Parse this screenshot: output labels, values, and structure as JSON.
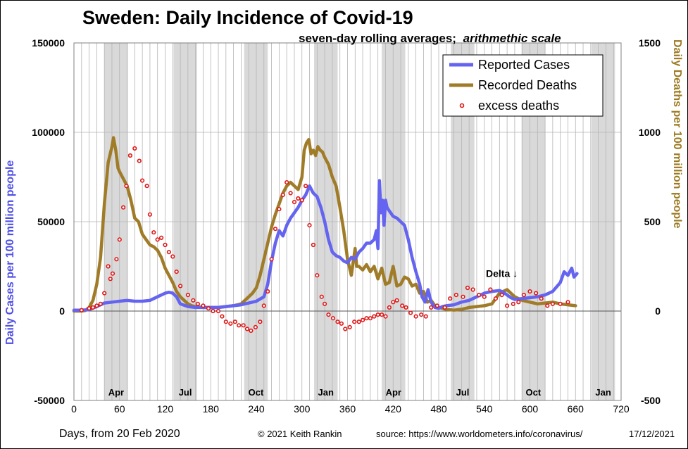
{
  "chart_data": {
    "type": "line",
    "title": "Sweden: Daily Incidence of Covid-19",
    "subtitle": "seven-day rolling averages;",
    "subtitle_italic": "arithmethic scale",
    "xlabel": "Days, from 20 Feb 2020",
    "ylabel_left": "Daily Cases per 100 million people",
    "ylabel_right": "Daily Deaths per 100 million people",
    "xlim": [
      0,
      720
    ],
    "xticks": [
      0,
      60,
      120,
      180,
      240,
      300,
      360,
      420,
      480,
      540,
      600,
      660,
      720
    ],
    "ylim_left": [
      -50000,
      150000
    ],
    "yticks_left": [
      -50000,
      0,
      50000,
      100000,
      150000
    ],
    "ylim_right": [
      -500,
      1500
    ],
    "yticks_right": [
      -500,
      0,
      500,
      1000,
      1500
    ],
    "vertical_grid_step": 10,
    "shaded_bands": [
      {
        "label": "Apr",
        "x": [
          40,
          71
        ]
      },
      {
        "label": "Jul",
        "x": [
          131,
          162
        ]
      },
      {
        "label": "Oct",
        "x": [
          224,
          255
        ]
      },
      {
        "label": "Jan",
        "x": [
          316,
          347
        ]
      },
      {
        "label": "Apr",
        "x": [
          405,
          436
        ]
      },
      {
        "label": "Jul",
        "x": [
          496,
          527
        ]
      },
      {
        "label": "Oct",
        "x": [
          589,
          620
        ]
      },
      {
        "label": "Jan",
        "x": [
          681,
          712
        ]
      }
    ],
    "legend": {
      "placement": "top-right",
      "entries": [
        {
          "label": "Reported Cases",
          "color": "#6464f0",
          "kind": "line"
        },
        {
          "label": "Recorded Deaths",
          "color": "#a07c28",
          "kind": "line"
        },
        {
          "label": "excess deaths",
          "color": "#e01818",
          "kind": "marker"
        }
      ]
    },
    "annotations": [
      {
        "text": "Delta ↓",
        "x": 563,
        "y_left": 19000
      }
    ],
    "series": [
      {
        "name": "Reported Cases",
        "axis": "left",
        "color": "#6464f0",
        "x": [
          0,
          10,
          20,
          30,
          40,
          50,
          60,
          70,
          80,
          90,
          100,
          110,
          120,
          125,
          130,
          135,
          140,
          150,
          160,
          170,
          180,
          190,
          200,
          210,
          220,
          230,
          240,
          250,
          255,
          260,
          265,
          270,
          275,
          280,
          285,
          290,
          295,
          300,
          305,
          310,
          315,
          320,
          325,
          330,
          335,
          340,
          345,
          350,
          355,
          360,
          365,
          370,
          375,
          380,
          385,
          390,
          395,
          398,
          400,
          402,
          404,
          406,
          408,
          410,
          412,
          415,
          420,
          425,
          430,
          435,
          440,
          445,
          450,
          455,
          458,
          462,
          466,
          470,
          475,
          480,
          485,
          490,
          500,
          510,
          520,
          530,
          540,
          550,
          560,
          565,
          570,
          575,
          580,
          590,
          600,
          610,
          620,
          630,
          640,
          645,
          650,
          655,
          658,
          662
        ],
        "values": [
          500,
          500,
          800,
          2500,
          4500,
          5000,
          5500,
          6000,
          5500,
          5500,
          6000,
          8000,
          10000,
          10500,
          10000,
          8000,
          4000,
          2500,
          2000,
          2000,
          2000,
          2000,
          2500,
          3000,
          3500,
          4500,
          5500,
          8000,
          15000,
          28000,
          38000,
          45000,
          42000,
          48000,
          52000,
          55000,
          58000,
          62000,
          65000,
          70000,
          66000,
          64000,
          58000,
          50000,
          40000,
          33000,
          31000,
          30000,
          28000,
          27000,
          30000,
          29000,
          33000,
          35000,
          38000,
          38000,
          40000,
          45000,
          35000,
          73000,
          55000,
          62000,
          48000,
          62000,
          58000,
          56000,
          53000,
          52000,
          50000,
          48000,
          40000,
          30000,
          22000,
          15000,
          8000,
          5000,
          12000,
          5000,
          2000,
          1500,
          2500,
          3000,
          3500,
          5000,
          6000,
          8000,
          10000,
          11000,
          11500,
          10500,
          9000,
          7500,
          6500,
          7000,
          7500,
          8000,
          9000,
          11000,
          16000,
          22000,
          20000,
          24000,
          19000,
          21000
        ]
      },
      {
        "name": "Recorded Deaths",
        "axis": "right",
        "color": "#a07c28",
        "x": [
          0,
          10,
          15,
          20,
          25,
          30,
          35,
          40,
          45,
          50,
          52,
          55,
          58,
          60,
          65,
          70,
          75,
          80,
          85,
          90,
          95,
          100,
          105,
          110,
          115,
          120,
          125,
          130,
          135,
          140,
          145,
          150,
          155,
          160,
          170,
          180,
          190,
          200,
          210,
          220,
          225,
          230,
          235,
          240,
          245,
          250,
          255,
          260,
          265,
          270,
          275,
          280,
          285,
          290,
          295,
          300,
          303,
          306,
          309,
          312,
          315,
          318,
          321,
          324,
          327,
          330,
          335,
          340,
          345,
          350,
          355,
          360,
          365,
          370,
          372,
          375,
          380,
          385,
          390,
          395,
          400,
          405,
          410,
          415,
          420,
          425,
          430,
          435,
          440,
          445,
          450,
          455,
          460,
          465,
          470,
          475,
          480,
          485,
          490,
          500,
          510,
          520,
          530,
          540,
          550,
          560,
          565,
          570,
          575,
          580,
          590,
          600,
          610,
          620,
          630,
          640,
          650,
          660
        ],
        "values": [
          0,
          0,
          3,
          20,
          60,
          150,
          300,
          600,
          830,
          920,
          970,
          900,
          800,
          780,
          740,
          700,
          620,
          520,
          500,
          430,
          400,
          370,
          360,
          340,
          300,
          240,
          200,
          160,
          110,
          80,
          60,
          40,
          30,
          25,
          20,
          20,
          20,
          25,
          30,
          40,
          60,
          80,
          100,
          130,
          200,
          290,
          380,
          470,
          540,
          600,
          660,
          700,
          720,
          700,
          680,
          750,
          900,
          940,
          960,
          880,
          900,
          870,
          920,
          900,
          890,
          860,
          820,
          750,
          700,
          580,
          450,
          290,
          200,
          350,
          250,
          250,
          230,
          260,
          220,
          250,
          180,
          240,
          150,
          160,
          250,
          140,
          150,
          190,
          180,
          140,
          150,
          100,
          110,
          50,
          60,
          30,
          20,
          15,
          10,
          5,
          10,
          20,
          25,
          30,
          40,
          100,
          110,
          120,
          100,
          80,
          60,
          50,
          40,
          45,
          50,
          40,
          35,
          30
        ]
      }
    ],
    "points": {
      "name": "excess deaths",
      "axis": "right",
      "color": "#e01818",
      "x": [
        10,
        20,
        25,
        30,
        35,
        40,
        45,
        48,
        51,
        56,
        60,
        65,
        69,
        74,
        80,
        86,
        90,
        96,
        100,
        105,
        110,
        115,
        120,
        125,
        130,
        135,
        140,
        150,
        157,
        163,
        170,
        177,
        183,
        190,
        195,
        200,
        206,
        212,
        217,
        223,
        228,
        233,
        239,
        245,
        250,
        255,
        260,
        265,
        270,
        275,
        280,
        285,
        290,
        295,
        300,
        305,
        310,
        315,
        320,
        326,
        330,
        335,
        341,
        347,
        352,
        357,
        363,
        369,
        375,
        380,
        385,
        390,
        395,
        400,
        405,
        410,
        415,
        420,
        425,
        432,
        437,
        443,
        450,
        457,
        463,
        470,
        478,
        488,
        495,
        503,
        512,
        518,
        525,
        533,
        540,
        548,
        555,
        563,
        570,
        578,
        585,
        592,
        600,
        608,
        615,
        623,
        630,
        640,
        650
      ],
      "values": [
        5,
        15,
        20,
        30,
        40,
        100,
        250,
        180,
        210,
        290,
        400,
        580,
        700,
        870,
        910,
        840,
        730,
        700,
        540,
        440,
        400,
        410,
        370,
        330,
        305,
        220,
        140,
        90,
        60,
        40,
        30,
        15,
        0,
        0,
        -30,
        -60,
        -70,
        -60,
        -80,
        -80,
        -100,
        -110,
        -90,
        -60,
        30,
        110,
        290,
        460,
        570,
        650,
        720,
        660,
        610,
        630,
        620,
        700,
        480,
        370,
        200,
        80,
        40,
        -20,
        -40,
        -60,
        -70,
        -100,
        -90,
        -60,
        -60,
        -50,
        -40,
        -40,
        -30,
        -20,
        -20,
        -30,
        20,
        50,
        60,
        30,
        20,
        -10,
        -30,
        -20,
        -30,
        20,
        30,
        20,
        70,
        90,
        80,
        130,
        120,
        90,
        80,
        120,
        70,
        90,
        30,
        40,
        50,
        90,
        110,
        100,
        70,
        30,
        40,
        40,
        50
      ]
    }
  },
  "footer": {
    "copyright": "© 2021  Keith Rankin",
    "source": "source:  https://www.worldometers.info/coronavirus/",
    "date": "17/12/2021"
  }
}
